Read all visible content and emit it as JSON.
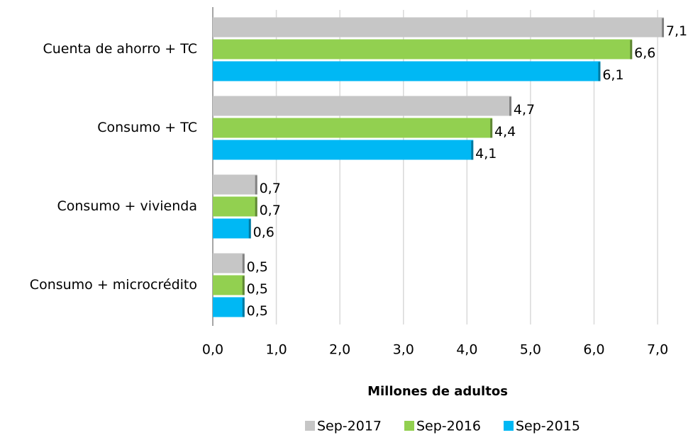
{
  "chart_data": {
    "type": "bar",
    "orientation": "horizontal",
    "x_axis_label": "Millones de adultos",
    "categories": [
      "Cuenta de ahorro + TC",
      "Consumo + TC",
      "Consumo + vivienda",
      "Consumo + microcrédito"
    ],
    "series": [
      {
        "name": "Sep-2017",
        "color": "#c6c6c6",
        "values": [
          7.1,
          4.7,
          0.7,
          0.5
        ],
        "value_labels": [
          "7,1",
          "4,7",
          "0,7",
          "0,5"
        ]
      },
      {
        "name": "Sep-2016",
        "color": "#92d050",
        "values": [
          6.6,
          4.4,
          0.7,
          0.5
        ],
        "value_labels": [
          "6,6",
          "4,4",
          "0,7",
          "0,5"
        ]
      },
      {
        "name": "Sep-2015",
        "color": "#00b8f4",
        "values": [
          6.1,
          4.1,
          0.6,
          0.5
        ],
        "value_labels": [
          "6,1",
          "4,1",
          "0,6",
          "0,5"
        ]
      }
    ],
    "xlim": [
      0,
      7.2
    ],
    "xticks": [
      {
        "value": 0,
        "label": "0,0"
      },
      {
        "value": 1,
        "label": "1,0"
      },
      {
        "value": 2,
        "label": "2,0"
      },
      {
        "value": 3,
        "label": "3,0"
      },
      {
        "value": 4,
        "label": "4,0"
      },
      {
        "value": 5,
        "label": "5,0"
      },
      {
        "value": 6,
        "label": "6,0"
      },
      {
        "value": 7,
        "label": "7,0"
      }
    ],
    "grid": true,
    "legend": "bottom"
  }
}
